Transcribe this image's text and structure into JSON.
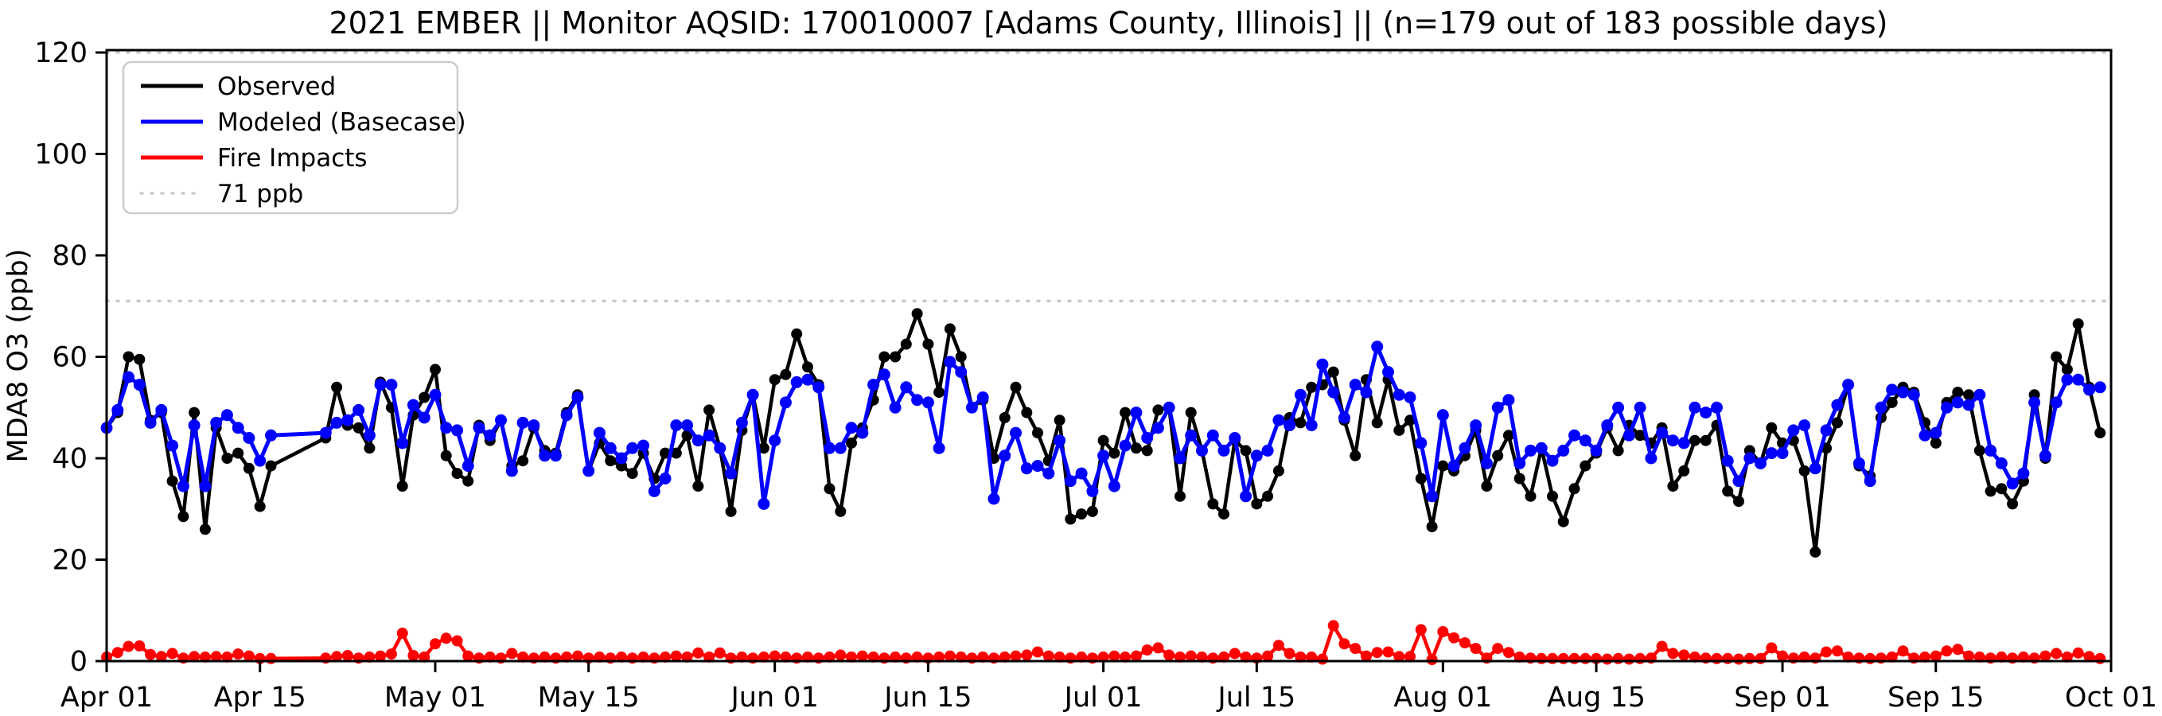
{
  "title": "2021 EMBER || Monitor AQSID: 170010007 [Adams County, Illinois] || (n=179 out of 183 possible days)",
  "y_axis": {
    "label": "MDA8 O3 (ppb)",
    "ticks": [
      0,
      20,
      40,
      60,
      80,
      100,
      120
    ]
  },
  "x_axis": {
    "tick_labels": [
      "Apr 01",
      "Apr 15",
      "May 01",
      "May 15",
      "Jun 01",
      "Jun 15",
      "Jul 01",
      "Jul 15",
      "Aug 01",
      "Aug 15",
      "Sep 01",
      "Sep 15",
      "Oct 01"
    ],
    "tick_days": [
      0,
      14,
      30,
      44,
      61,
      75,
      91,
      105,
      122,
      136,
      153,
      167,
      183
    ]
  },
  "legend": [
    {
      "label": "Observed",
      "color": "#000000",
      "style": "solid"
    },
    {
      "label": "Modeled (Basecase)",
      "color": "#0000ff",
      "style": "solid"
    },
    {
      "label": "Fire Impacts",
      "color": "#ff0000",
      "style": "solid"
    },
    {
      "label": "71 ppb",
      "color": "#c9c9c9",
      "style": "dotted"
    }
  ],
  "chart_data": {
    "type": "line",
    "title": "2021 EMBER || Monitor AQSID: 170010007 [Adams County, Illinois] || (n=179 out of 183 possible days)",
    "xlabel": "",
    "ylabel": "MDA8 O3 (ppb)",
    "ylim": [
      0,
      120.5
    ],
    "start_date": "2021-04-01",
    "end_date": "2021-09-30",
    "n_days": 183,
    "missing_days": [
      "2021-04-17",
      "2021-04-18",
      "2021-04-19",
      "2021-04-20"
    ],
    "reference_lines": [
      {
        "value": 71,
        "label": "71 ppb",
        "color": "#c9c9c9",
        "style": "dotted"
      },
      {
        "value": 120,
        "label": "",
        "color": "#c9c9c9",
        "style": "dotted"
      }
    ],
    "series": [
      {
        "name": "Observed",
        "color": "#000000",
        "values": [
          46,
          49,
          60,
          59.5,
          47.5,
          49,
          35.5,
          28.5,
          49,
          26,
          46,
          40,
          41,
          38,
          30.5,
          38.5,
          null,
          null,
          null,
          null,
          44,
          54,
          46.5,
          46,
          42,
          55,
          50,
          34.5,
          48.5,
          52,
          57.5,
          40.5,
          37,
          35.5,
          46.5,
          43.5,
          47.5,
          38.5,
          39.5,
          46,
          41.5,
          41,
          49,
          52.5,
          37.5,
          43,
          39.5,
          38.5,
          37,
          41,
          36,
          41,
          41,
          44.5,
          34.5,
          49.5,
          42,
          29.5,
          45.5,
          52.5,
          42,
          55.5,
          56.5,
          64.5,
          58,
          54.5,
          34,
          29.5,
          43,
          46,
          51.5,
          60,
          60,
          62.5,
          68.5,
          62.5,
          53,
          65.5,
          60,
          50,
          51.5,
          40,
          48,
          54,
          49,
          45,
          39.5,
          47.5,
          28,
          29,
          29.5,
          43.5,
          41,
          49,
          42,
          41.5,
          49.5,
          50,
          32.5,
          49,
          41.5,
          31,
          29,
          43.5,
          41.5,
          31,
          32.5,
          37.5,
          48,
          47,
          54,
          54.5,
          57,
          47.5,
          40.5,
          55.5,
          47,
          55.5,
          45.5,
          47.5,
          36,
          26.5,
          38.5,
          37.5,
          40.5,
          45.5,
          34.5,
          40.5,
          44.5,
          36,
          32.5,
          42,
          32.5,
          27.5,
          34,
          38.5,
          41,
          46,
          41.5,
          46.5,
          44.5,
          43,
          46,
          34.5,
          37.5,
          43.5,
          43.5,
          46.5,
          33.5,
          31.5,
          41.5,
          39,
          46,
          43,
          43.5,
          37.5,
          21.5,
          42,
          47,
          54.5,
          38.5,
          36.5,
          48,
          51,
          54,
          53,
          47,
          43,
          51,
          53,
          52.5,
          41.5,
          33.5,
          34,
          31,
          35.5,
          52.5,
          40,
          60,
          57.5,
          66.5,
          54,
          45
        ]
      },
      {
        "name": "Modeled (Basecase)",
        "color": "#0000ff",
        "values": [
          46,
          49.5,
          56,
          54.5,
          47,
          49.5,
          42.5,
          34.5,
          46.5,
          34.5,
          47,
          48.5,
          46,
          44,
          39.5,
          44.5,
          null,
          null,
          null,
          null,
          45,
          47,
          47.5,
          49.5,
          44.5,
          54.5,
          54.5,
          43,
          50.5,
          48,
          52.5,
          46,
          45.5,
          38.5,
          46,
          44.5,
          47.5,
          37.5,
          47,
          46.5,
          40.5,
          40.5,
          48.5,
          52,
          37.5,
          45,
          42,
          40,
          42,
          42.5,
          33.5,
          36,
          46.5,
          46.5,
          43.5,
          44.5,
          42,
          37,
          47,
          52.5,
          31,
          43.5,
          51,
          55,
          55.5,
          54,
          42,
          42,
          46,
          45,
          54.5,
          56.5,
          50,
          54,
          51.5,
          51,
          42,
          59,
          57,
          50,
          52,
          32,
          40.5,
          45,
          38,
          38.5,
          37,
          43.5,
          35.5,
          37,
          33.5,
          40.5,
          34.5,
          42.5,
          49,
          44,
          46,
          50,
          40,
          44.5,
          41.5,
          44.5,
          41.5,
          44,
          32.5,
          40.5,
          41.5,
          47.5,
          46.5,
          52.5,
          46.5,
          58.5,
          53,
          48,
          54.5,
          53,
          62,
          57,
          52.5,
          52,
          43,
          32.5,
          48.5,
          38.5,
          42,
          46.5,
          39,
          50,
          51.5,
          39,
          41.5,
          42,
          39.5,
          41.5,
          44.5,
          43.5,
          41.5,
          46.5,
          50,
          44.5,
          50,
          40,
          45,
          43.5,
          43,
          50,
          49,
          50,
          39.5,
          35.5,
          40,
          39,
          41,
          41,
          45.5,
          46.5,
          38,
          45.5,
          50.5,
          54.5,
          39,
          35.5,
          50,
          53.5,
          53,
          52.5,
          44.5,
          45,
          50,
          51,
          50.5,
          52.5,
          41.5,
          39,
          35,
          37,
          51,
          40.5,
          51,
          55.5,
          55.5,
          53.5,
          54
        ]
      },
      {
        "name": "Fire Impacts",
        "color": "#ff0000",
        "values": [
          0.8,
          1.7,
          2.9,
          3,
          1.3,
          0.9,
          1.5,
          0.6,
          0.9,
          0.8,
          0.9,
          0.8,
          1.4,
          1,
          0.5,
          0.5,
          null,
          null,
          null,
          null,
          0.6,
          0.9,
          1.1,
          0.6,
          0.8,
          1,
          1.4,
          5.5,
          1.1,
          0.8,
          3.4,
          4.5,
          4,
          1,
          0.6,
          0.8,
          0.6,
          1.5,
          0.8,
          0.6,
          0.8,
          0.6,
          0.8,
          1,
          0.6,
          0.8,
          0.6,
          0.8,
          0.6,
          0.8,
          0.6,
          0.8,
          1,
          0.8,
          1.6,
          0.8,
          1.6,
          0.6,
          0.8,
          0.6,
          0.8,
          1,
          0.8,
          0.6,
          0.8,
          0.6,
          0.8,
          1.2,
          0.8,
          1,
          0.8,
          0.6,
          0.8,
          0.6,
          0.8,
          0.6,
          0.8,
          1,
          0.8,
          0.6,
          0.8,
          0.6,
          0.8,
          1,
          1.2,
          1.8,
          1,
          0.8,
          0.6,
          0.8,
          0.6,
          0.8,
          1,
          0.8,
          1,
          2.2,
          2.6,
          1.2,
          0.8,
          1,
          0.8,
          0.6,
          0.8,
          1.5,
          0.8,
          0.6,
          1,
          3.1,
          1.5,
          0.8,
          0.8,
          0.4,
          7,
          3.4,
          2.5,
          1,
          1.7,
          1.8,
          0.9,
          0.9,
          6.2,
          0.3,
          5.8,
          4.6,
          3.6,
          2.5,
          0.6,
          2.5,
          1.7,
          0.8,
          0.6,
          0.5,
          0.5,
          0.5,
          0.5,
          0.5,
          0.5,
          0.4,
          0.5,
          0.4,
          0.5,
          0.6,
          2.9,
          1.5,
          1.2,
          0.8,
          0.6,
          0.5,
          0.5,
          0.4,
          0.5,
          0.5,
          2.6,
          1,
          0.6,
          0.8,
          0.6,
          1.8,
          2,
          0.8,
          0.6,
          0.5,
          0.6,
          0.8,
          2,
          0.6,
          0.8,
          1,
          2,
          2.3,
          1,
          0.8,
          0.6,
          0.8,
          0.6,
          0.8,
          0.6,
          1,
          1.5,
          0.8,
          1.6,
          0.9,
          0.5
        ]
      }
    ]
  }
}
